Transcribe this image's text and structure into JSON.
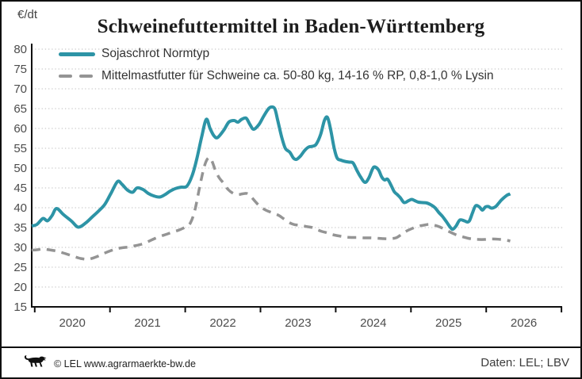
{
  "header": {
    "unit_label": "€/dt",
    "title": "Schweinefuttermittel in Baden-Württemberg"
  },
  "legend": [
    {
      "label": "Sojaschrot Normtyp",
      "style": "solid",
      "color": "#2d94a6"
    },
    {
      "label": "Mittelmastfutter für Schweine ca. 50-80 kg, 14-16 % RP, 0,8-1,0 % Lysin",
      "style": "dashed",
      "color": "#949494"
    }
  ],
  "footer": {
    "copyright": "© LEL www.agrarmaerkte-bw.de",
    "source": "Daten: LEL; LBV",
    "logo_icon": "bw-lion-icon"
  },
  "chart_data": {
    "type": "line",
    "title": "Schweinefuttermittel in Baden-Württemberg",
    "ylabel": "€/dt",
    "xlabel": "",
    "grid": "horizontal-dotted",
    "legend_position": "top-left-inside",
    "x_tick_years": [
      2020,
      2021,
      2022,
      2023,
      2024,
      2025,
      2026
    ],
    "y_ticks": [
      15,
      20,
      25,
      30,
      35,
      40,
      45,
      50,
      55,
      60,
      65,
      70,
      75,
      80
    ],
    "xlim": [
      2019.96,
      2027.01
    ],
    "ylim": [
      15,
      81.4
    ],
    "colors": {
      "axis": "#101010",
      "grid": "#cbcbcb",
      "tick_text": "#4c4c4c"
    },
    "series": [
      {
        "name": "Sojaschrot Normtyp",
        "color": "#2d94a6",
        "dash": "solid",
        "points": [
          [
            2019.96,
            35.4
          ],
          [
            2020.03,
            35.8
          ],
          [
            2020.11,
            37.3
          ],
          [
            2020.17,
            36.7
          ],
          [
            2020.23,
            38.0
          ],
          [
            2020.29,
            39.8
          ],
          [
            2020.38,
            38.3
          ],
          [
            2020.49,
            36.6
          ],
          [
            2020.58,
            35.1
          ],
          [
            2020.68,
            36.2
          ],
          [
            2020.76,
            37.6
          ],
          [
            2020.85,
            39.2
          ],
          [
            2020.93,
            40.8
          ],
          [
            2021.01,
            43.5
          ],
          [
            2021.1,
            46.6
          ],
          [
            2021.16,
            45.9
          ],
          [
            2021.23,
            44.5
          ],
          [
            2021.3,
            43.9
          ],
          [
            2021.36,
            45.0
          ],
          [
            2021.44,
            44.6
          ],
          [
            2021.51,
            43.6
          ],
          [
            2021.58,
            43.0
          ],
          [
            2021.66,
            42.7
          ],
          [
            2021.73,
            43.3
          ],
          [
            2021.8,
            44.2
          ],
          [
            2021.88,
            44.9
          ],
          [
            2021.95,
            45.2
          ],
          [
            2022.02,
            45.4
          ],
          [
            2022.09,
            48.0
          ],
          [
            2022.15,
            52.0
          ],
          [
            2022.22,
            58.0
          ],
          [
            2022.28,
            62.3
          ],
          [
            2022.33,
            60.0
          ],
          [
            2022.38,
            58.2
          ],
          [
            2022.43,
            57.7
          ],
          [
            2022.51,
            59.5
          ],
          [
            2022.58,
            61.6
          ],
          [
            2022.65,
            62.0
          ],
          [
            2022.7,
            61.6
          ],
          [
            2022.75,
            62.3
          ],
          [
            2022.81,
            62.6
          ],
          [
            2022.86,
            61.0
          ],
          [
            2022.91,
            59.8
          ],
          [
            2022.98,
            61.0
          ],
          [
            2023.04,
            63.0
          ],
          [
            2023.1,
            64.8
          ],
          [
            2023.14,
            65.4
          ],
          [
            2023.19,
            65.0
          ],
          [
            2023.23,
            62.0
          ],
          [
            2023.28,
            58.0
          ],
          [
            2023.33,
            55.0
          ],
          [
            2023.39,
            54.0
          ],
          [
            2023.44,
            52.5
          ],
          [
            2023.48,
            52.2
          ],
          [
            2023.53,
            53.0
          ],
          [
            2023.59,
            54.5
          ],
          [
            2023.64,
            55.3
          ],
          [
            2023.69,
            55.5
          ],
          [
            2023.74,
            56.0
          ],
          [
            2023.8,
            58.5
          ],
          [
            2023.85,
            62.0
          ],
          [
            2023.89,
            62.8
          ],
          [
            2023.93,
            60.0
          ],
          [
            2023.98,
            55.0
          ],
          [
            2024.02,
            52.5
          ],
          [
            2024.07,
            52.0
          ],
          [
            2024.12,
            51.7
          ],
          [
            2024.18,
            51.5
          ],
          [
            2024.23,
            51.3
          ],
          [
            2024.28,
            49.5
          ],
          [
            2024.33,
            47.8
          ],
          [
            2024.39,
            46.4
          ],
          [
            2024.44,
            47.5
          ],
          [
            2024.49,
            49.8
          ],
          [
            2024.52,
            50.3
          ],
          [
            2024.57,
            49.5
          ],
          [
            2024.61,
            47.8
          ],
          [
            2024.65,
            47.0
          ],
          [
            2024.69,
            47.2
          ],
          [
            2024.74,
            45.5
          ],
          [
            2024.78,
            44.0
          ],
          [
            2024.82,
            43.3
          ],
          [
            2024.86,
            42.5
          ],
          [
            2024.91,
            41.3
          ],
          [
            2024.97,
            41.8
          ],
          [
            2025.01,
            42.1
          ],
          [
            2025.05,
            41.8
          ],
          [
            2025.1,
            41.4
          ],
          [
            2025.16,
            41.3
          ],
          [
            2025.21,
            41.2
          ],
          [
            2025.26,
            40.8
          ],
          [
            2025.32,
            40.0
          ],
          [
            2025.37,
            38.8
          ],
          [
            2025.42,
            37.8
          ],
          [
            2025.47,
            36.5
          ],
          [
            2025.53,
            34.9
          ],
          [
            2025.56,
            34.6
          ],
          [
            2025.6,
            35.4
          ],
          [
            2025.65,
            36.9
          ],
          [
            2025.71,
            36.7
          ],
          [
            2025.75,
            36.4
          ],
          [
            2025.78,
            36.8
          ],
          [
            2025.82,
            38.8
          ],
          [
            2025.86,
            40.5
          ],
          [
            2025.91,
            40.2
          ],
          [
            2025.95,
            39.4
          ],
          [
            2025.99,
            40.2
          ],
          [
            2026.03,
            40.3
          ],
          [
            2026.07,
            39.9
          ],
          [
            2026.12,
            40.2
          ],
          [
            2026.16,
            41.0
          ],
          [
            2026.2,
            41.9
          ],
          [
            2026.24,
            42.6
          ],
          [
            2026.28,
            43.2
          ],
          [
            2026.32,
            43.5
          ]
        ]
      },
      {
        "name": "Mittelmastfutter für Schweine ca. 50-80 kg, 14-16 % RP, 0,8-1,0 % Lysin",
        "color": "#949494",
        "dash": "dashed",
        "points": [
          [
            2019.96,
            29.3
          ],
          [
            2020.03,
            29.4
          ],
          [
            2020.11,
            29.6
          ],
          [
            2020.19,
            29.4
          ],
          [
            2020.28,
            29.1
          ],
          [
            2020.36,
            28.7
          ],
          [
            2020.46,
            28.1
          ],
          [
            2020.54,
            27.6
          ],
          [
            2020.61,
            27.2
          ],
          [
            2020.69,
            27.0
          ],
          [
            2020.74,
            27.1
          ],
          [
            2020.83,
            27.7
          ],
          [
            2020.91,
            28.4
          ],
          [
            2021.0,
            29.1
          ],
          [
            2021.08,
            29.6
          ],
          [
            2021.16,
            29.9
          ],
          [
            2021.25,
            30.1
          ],
          [
            2021.33,
            30.4
          ],
          [
            2021.42,
            30.8
          ],
          [
            2021.5,
            31.4
          ],
          [
            2021.58,
            32.1
          ],
          [
            2021.67,
            32.8
          ],
          [
            2021.75,
            33.3
          ],
          [
            2021.84,
            33.9
          ],
          [
            2021.92,
            34.4
          ],
          [
            2022.01,
            35.2
          ],
          [
            2022.07,
            36.2
          ],
          [
            2022.13,
            39.5
          ],
          [
            2022.2,
            46.0
          ],
          [
            2022.26,
            50.8
          ],
          [
            2022.31,
            52.6
          ],
          [
            2022.35,
            52.0
          ],
          [
            2022.4,
            49.5
          ],
          [
            2022.45,
            47.6
          ],
          [
            2022.51,
            46.2
          ],
          [
            2022.57,
            44.6
          ],
          [
            2022.64,
            43.6
          ],
          [
            2022.7,
            43.3
          ],
          [
            2022.76,
            43.5
          ],
          [
            2022.82,
            43.6
          ],
          [
            2022.87,
            42.9
          ],
          [
            2022.93,
            41.6
          ],
          [
            2022.99,
            40.4
          ],
          [
            2023.06,
            39.5
          ],
          [
            2023.12,
            39.0
          ],
          [
            2023.19,
            38.5
          ],
          [
            2023.25,
            38.0
          ],
          [
            2023.31,
            37.2
          ],
          [
            2023.38,
            36.3
          ],
          [
            2023.44,
            35.8
          ],
          [
            2023.5,
            35.6
          ],
          [
            2023.57,
            35.4
          ],
          [
            2023.63,
            35.2
          ],
          [
            2023.69,
            35.0
          ],
          [
            2023.75,
            34.5
          ],
          [
            2023.82,
            34.0
          ],
          [
            2023.88,
            33.7
          ],
          [
            2023.94,
            33.3
          ],
          [
            2024.01,
            33.0
          ],
          [
            2024.07,
            32.8
          ],
          [
            2024.13,
            32.6
          ],
          [
            2024.22,
            32.5
          ],
          [
            2024.3,
            32.5
          ],
          [
            2024.39,
            32.4
          ],
          [
            2024.47,
            32.4
          ],
          [
            2024.56,
            32.3
          ],
          [
            2024.64,
            32.2
          ],
          [
            2024.72,
            32.2
          ],
          [
            2024.8,
            32.4
          ],
          [
            2024.87,
            33.2
          ],
          [
            2024.94,
            34.1
          ],
          [
            2025.02,
            34.8
          ],
          [
            2025.09,
            35.3
          ],
          [
            2025.17,
            35.6
          ],
          [
            2025.24,
            35.8
          ],
          [
            2025.31,
            35.6
          ],
          [
            2025.39,
            35.1
          ],
          [
            2025.46,
            34.4
          ],
          [
            2025.54,
            33.7
          ],
          [
            2025.61,
            33.1
          ],
          [
            2025.68,
            32.7
          ],
          [
            2025.76,
            32.3
          ],
          [
            2025.83,
            32.1
          ],
          [
            2025.9,
            32.0
          ],
          [
            2025.98,
            32.0
          ],
          [
            2026.05,
            32.1
          ],
          [
            2026.12,
            32.1
          ],
          [
            2026.2,
            32.0
          ],
          [
            2026.27,
            31.8
          ],
          [
            2026.32,
            31.6
          ]
        ]
      }
    ]
  }
}
